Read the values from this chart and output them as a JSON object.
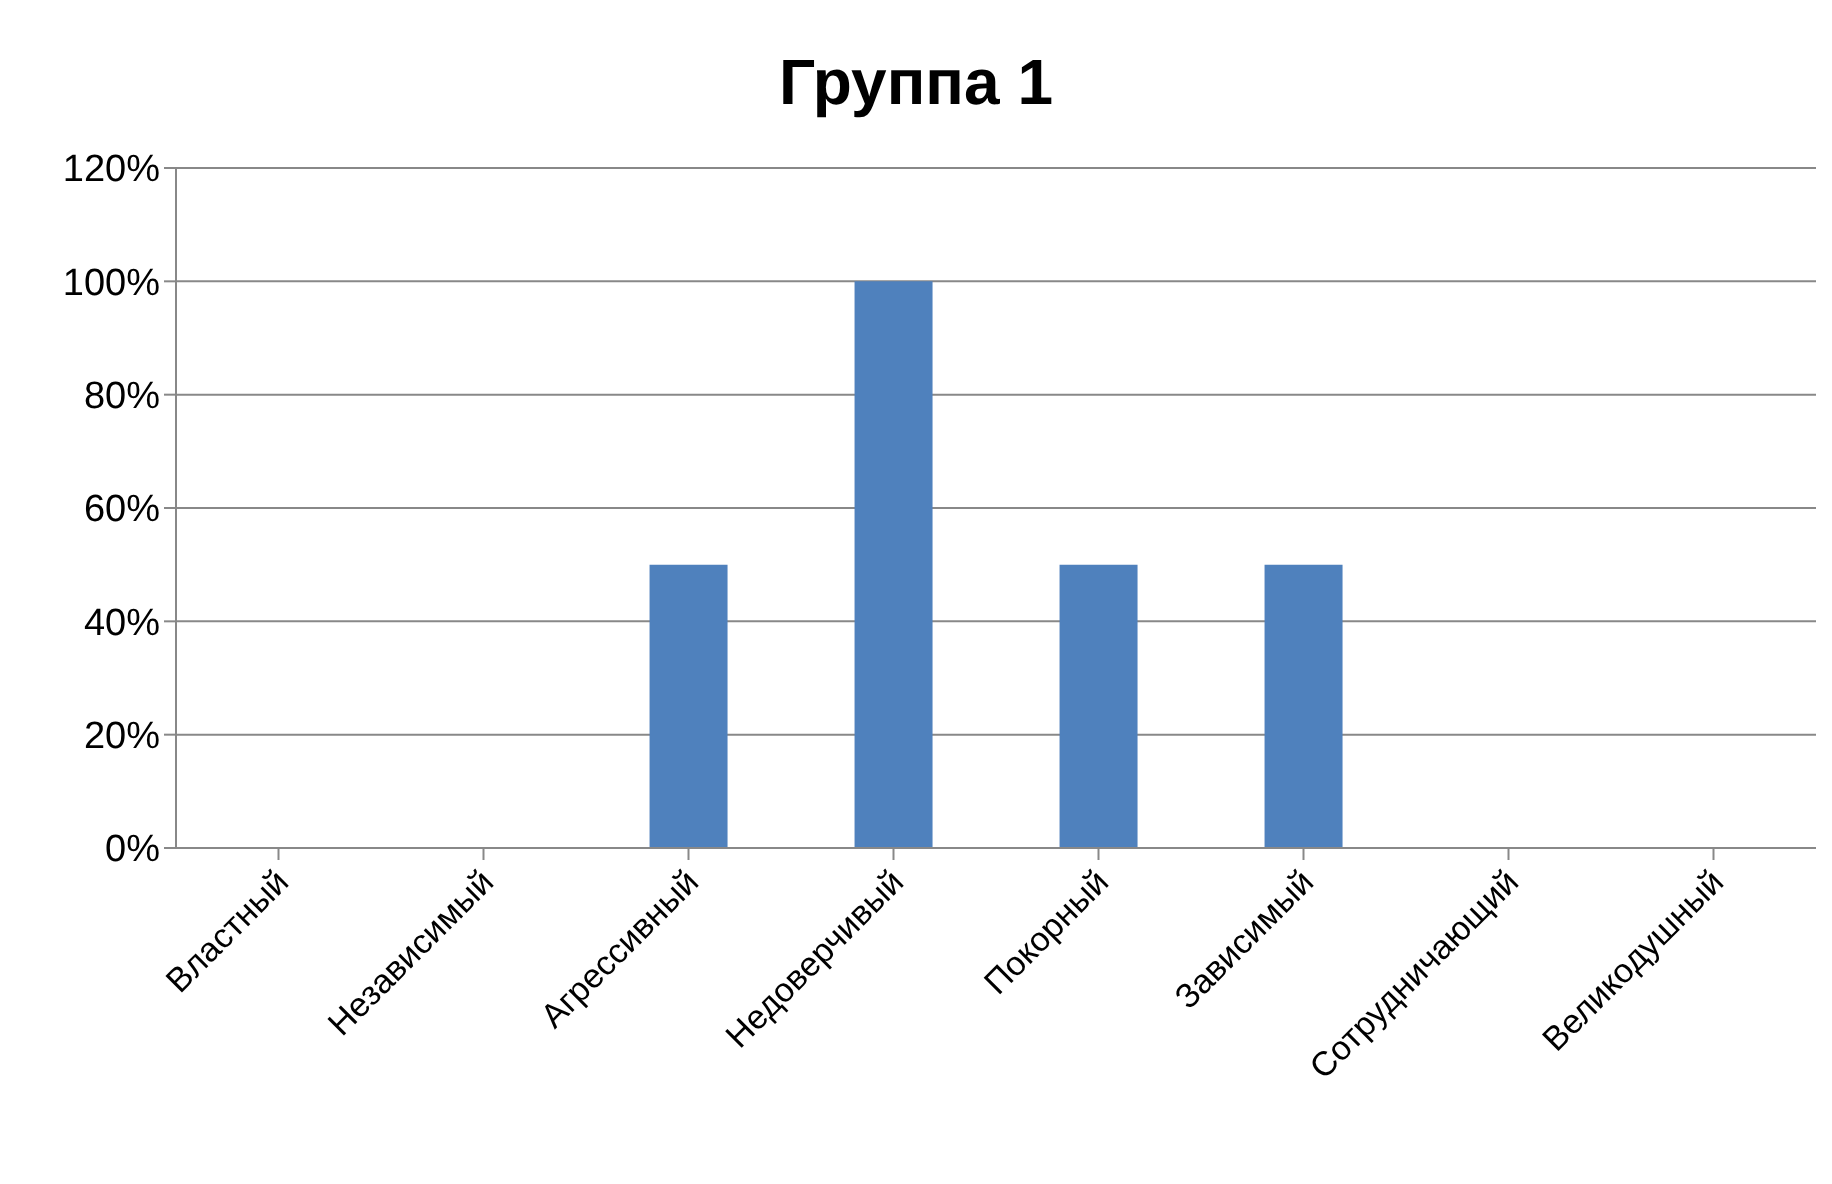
{
  "chart_data": {
    "type": "bar",
    "title": "Группа 1",
    "categories": [
      "Властный",
      "Независимый",
      "Агрессивный",
      "Недоверчивый",
      "Покорный",
      "Зависимый",
      "Сотрудничающий",
      "Великодушный"
    ],
    "values": [
      0,
      0,
      50,
      100,
      50,
      50,
      0,
      0
    ],
    "color": "#4f81bd",
    "ylim": [
      0,
      120
    ],
    "yticks": [
      {
        "value": 0,
        "label": "0%"
      },
      {
        "value": 20,
        "label": "20%"
      },
      {
        "value": 40,
        "label": "40%"
      },
      {
        "value": 60,
        "label": "60%"
      },
      {
        "value": 80,
        "label": "80%"
      },
      {
        "value": 100,
        "label": "100%"
      },
      {
        "value": 120,
        "label": "120%"
      }
    ],
    "grid": "y"
  }
}
